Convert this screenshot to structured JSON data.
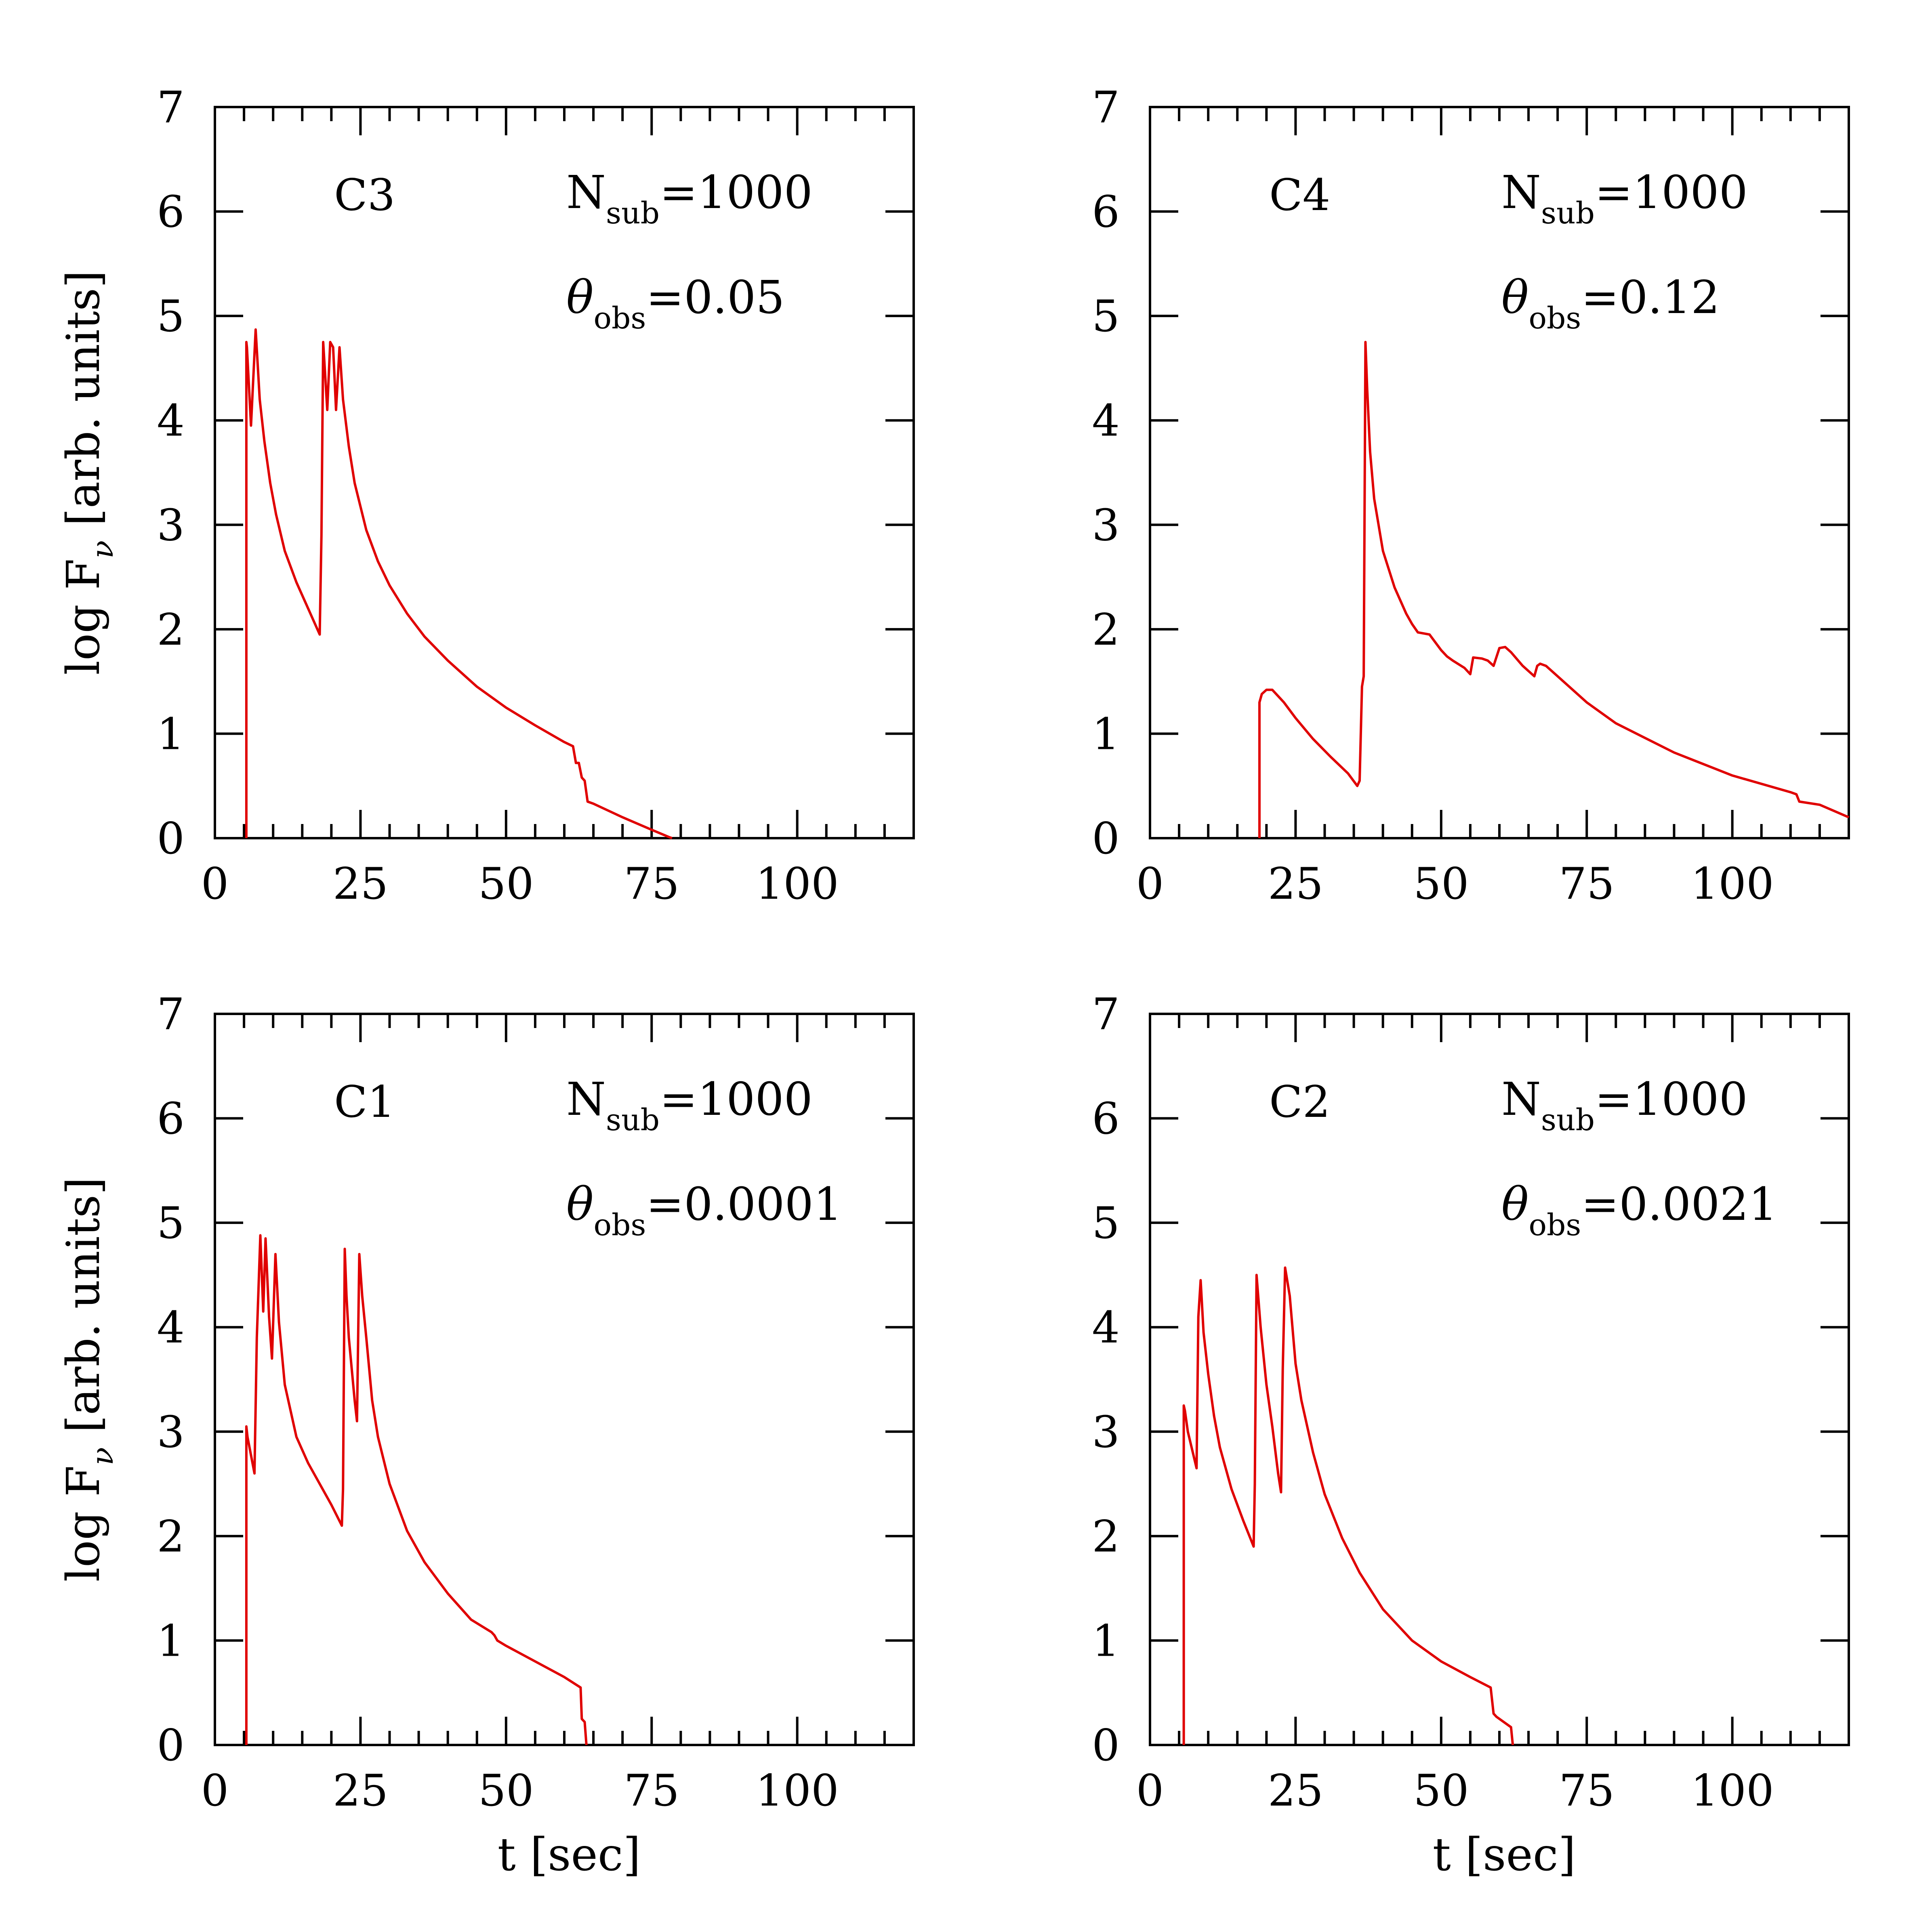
{
  "colors": {
    "curve": "#e00000",
    "axes": "#000000",
    "background": "#ffffff"
  },
  "chart_data": [
    {
      "type": "line",
      "panel_label": "C3",
      "n_sub_label": "N",
      "n_sub_subscript": "sub",
      "n_sub_value": "=1000",
      "theta_label": "θ",
      "theta_subscript": "obs",
      "theta_value": "=0.05",
      "xlabel": "",
      "ylabel": "log F_ν [arb. units]",
      "ylabel_parts": {
        "prefix": "log F",
        "subscript": "ν",
        "suffix": " [arb. units]"
      },
      "xlim": [
        0,
        120
      ],
      "ylim": [
        0,
        7
      ],
      "xticks": [
        0,
        25,
        50,
        75,
        100
      ],
      "xtick_labels": [
        "0",
        "25",
        "50",
        "75",
        "100"
      ],
      "yticks": [
        0,
        1,
        2,
        3,
        4,
        5,
        6,
        7
      ],
      "ytick_labels": [
        "0",
        "1",
        "2",
        "3",
        "4",
        "5",
        "6",
        "7"
      ],
      "grid": false,
      "series": [
        {
          "x": [
            5.4,
            5.4,
            5.5,
            6.2,
            7,
            7.7,
            8.5,
            9.5,
            10.5,
            12,
            14,
            16,
            18,
            18.3,
            18.6,
            19.3,
            19.8,
            20.3,
            20.8,
            21.4,
            22,
            23,
            24,
            26,
            28,
            30,
            33,
            36,
            40,
            45,
            50,
            55,
            60,
            61.5,
            62,
            62.5,
            63,
            63.5,
            64,
            65,
            70,
            75,
            78,
            78.5
          ],
          "y": [
            0,
            4.75,
            4.7,
            3.95,
            4.87,
            4.2,
            3.8,
            3.4,
            3.1,
            2.75,
            2.45,
            2.2,
            1.95,
            2.9,
            4.75,
            4.1,
            4.75,
            4.7,
            4.1,
            4.7,
            4.2,
            3.75,
            3.4,
            2.95,
            2.65,
            2.42,
            2.15,
            1.93,
            1.7,
            1.45,
            1.25,
            1.08,
            0.92,
            0.88,
            0.72,
            0.72,
            0.58,
            0.55,
            0.35,
            0.33,
            0.2,
            0.08,
            0.01,
            0
          ]
        }
      ]
    },
    {
      "type": "line",
      "panel_label": "C4",
      "n_sub_label": "N",
      "n_sub_subscript": "sub",
      "n_sub_value": "=1000",
      "theta_label": "θ",
      "theta_subscript": "obs",
      "theta_value": "=0.12",
      "xlabel": "",
      "ylabel": "",
      "xlim": [
        0,
        120
      ],
      "ylim": [
        0,
        7
      ],
      "xticks": [
        0,
        25,
        50,
        75,
        100
      ],
      "xtick_labels": [
        "0",
        "25",
        "50",
        "75",
        "100"
      ],
      "yticks": [
        0,
        1,
        2,
        3,
        4,
        5,
        6,
        7
      ],
      "ytick_labels": [
        "0",
        "1",
        "2",
        "3",
        "4",
        "5",
        "6",
        "7"
      ],
      "grid": false,
      "series": [
        {
          "x": [
            18.8,
            18.8,
            19.2,
            20,
            21,
            23,
            25,
            28,
            31,
            34,
            35.6,
            36,
            36.4,
            36.7,
            37,
            37.3,
            37.8,
            38.5,
            40,
            42,
            44,
            45,
            46,
            48,
            50,
            51,
            52,
            54,
            55,
            55.5,
            57,
            58,
            59,
            60,
            61,
            62,
            64,
            66,
            66.5,
            67,
            68,
            70,
            75,
            80,
            90,
            100,
            110,
            111,
            111.5,
            115,
            120
          ],
          "y": [
            0,
            1.3,
            1.38,
            1.42,
            1.42,
            1.3,
            1.15,
            0.95,
            0.78,
            0.62,
            0.5,
            0.55,
            1.45,
            1.55,
            4.75,
            4.3,
            3.7,
            3.25,
            2.75,
            2.4,
            2.15,
            2.05,
            1.97,
            1.95,
            1.8,
            1.74,
            1.7,
            1.63,
            1.57,
            1.73,
            1.72,
            1.7,
            1.65,
            1.82,
            1.83,
            1.78,
            1.65,
            1.55,
            1.65,
            1.67,
            1.65,
            1.55,
            1.3,
            1.1,
            0.82,
            0.6,
            0.44,
            0.42,
            0.35,
            0.32,
            0.2
          ]
        }
      ]
    },
    {
      "type": "line",
      "panel_label": "C1",
      "n_sub_label": "N",
      "n_sub_subscript": "sub",
      "n_sub_value": "=1000",
      "theta_label": "θ",
      "theta_subscript": "obs",
      "theta_value": "=0.0001",
      "xlabel": "t [sec]",
      "ylabel": "log F_ν [arb. units]",
      "ylabel_parts": {
        "prefix": "log F",
        "subscript": "ν",
        "suffix": " [arb. units]"
      },
      "xlim": [
        0,
        120
      ],
      "ylim": [
        0,
        7
      ],
      "xticks": [
        0,
        25,
        50,
        75,
        100
      ],
      "xtick_labels": [
        "0",
        "25",
        "50",
        "75",
        "100"
      ],
      "yticks": [
        0,
        1,
        2,
        3,
        4,
        5,
        6,
        7
      ],
      "ytick_labels": [
        "0",
        "1",
        "2",
        "3",
        "4",
        "5",
        "6",
        "7"
      ],
      "grid": false,
      "series": [
        {
          "x": [
            5.4,
            5.4,
            5.6,
            6.8,
            7.2,
            7.8,
            8.3,
            8.7,
            9.3,
            9.8,
            10.4,
            11,
            12,
            14,
            16,
            18,
            20,
            21.8,
            22,
            22.3,
            22.6,
            23,
            24,
            24.4,
            24.8,
            25.3,
            26,
            27,
            28,
            30,
            33,
            36,
            40,
            44,
            47.5,
            48,
            48.5,
            50,
            55,
            60,
            62.8,
            63,
            63.5,
            63.8
          ],
          "y": [
            0,
            3.05,
            2.95,
            2.6,
            3.9,
            4.88,
            4.15,
            4.85,
            4.1,
            3.7,
            4.7,
            4.05,
            3.45,
            2.95,
            2.7,
            2.5,
            2.3,
            2.1,
            2.45,
            4.75,
            4.3,
            3.9,
            3.3,
            3.1,
            4.7,
            4.3,
            3.9,
            3.3,
            2.95,
            2.5,
            2.05,
            1.75,
            1.45,
            1.2,
            1.08,
            1.05,
            1.0,
            0.95,
            0.8,
            0.65,
            0.55,
            0.25,
            0.22,
            0
          ]
        }
      ]
    },
    {
      "type": "line",
      "panel_label": "C2",
      "n_sub_label": "N",
      "n_sub_subscript": "sub",
      "n_sub_value": "=1000",
      "theta_label": "θ",
      "theta_subscript": "obs",
      "theta_value": "=0.0021",
      "xlabel": "t [sec]",
      "ylabel": "",
      "xlim": [
        0,
        120
      ],
      "ylim": [
        0,
        7
      ],
      "xticks": [
        0,
        25,
        50,
        75,
        100
      ],
      "xtick_labels": [
        "0",
        "25",
        "50",
        "75",
        "100"
      ],
      "yticks": [
        0,
        1,
        2,
        3,
        4,
        5,
        6,
        7
      ],
      "ytick_labels": [
        "0",
        "1",
        "2",
        "3",
        "4",
        "5",
        "6",
        "7"
      ],
      "grid": false,
      "series": [
        {
          "x": [
            5.8,
            5.8,
            6,
            6.5,
            8,
            8.3,
            8.7,
            9.2,
            10,
            11,
            12,
            14,
            16,
            17.8,
            18,
            18.3,
            19,
            20,
            21,
            22,
            22.5,
            22.8,
            23.2,
            24,
            25,
            26,
            28,
            30,
            33,
            36,
            40,
            45,
            50,
            55,
            58.5,
            59,
            59.5,
            62,
            62.3
          ],
          "y": [
            0,
            3.25,
            3.2,
            3.0,
            2.65,
            4.1,
            4.45,
            3.95,
            3.55,
            3.15,
            2.85,
            2.45,
            2.15,
            1.9,
            2.5,
            4.5,
            4.0,
            3.45,
            3.05,
            2.6,
            2.42,
            3.6,
            4.57,
            4.3,
            3.65,
            3.3,
            2.8,
            2.4,
            1.98,
            1.65,
            1.3,
            1.0,
            0.8,
            0.65,
            0.55,
            0.3,
            0.27,
            0.17,
            0
          ]
        }
      ]
    }
  ]
}
